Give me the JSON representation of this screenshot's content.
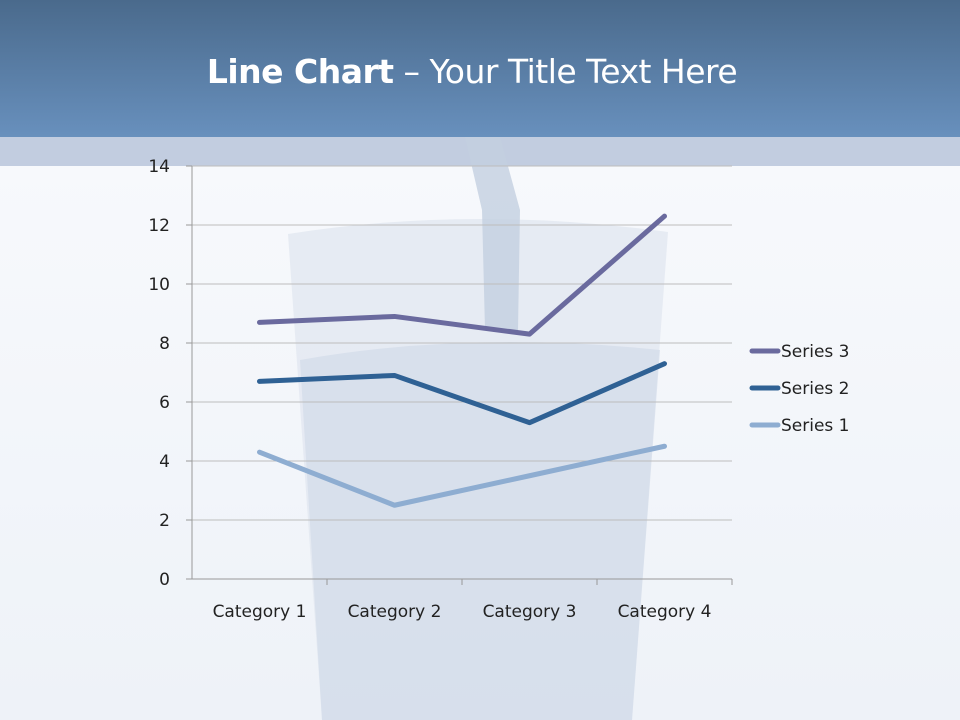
{
  "slide": {
    "title_bold": "Line Chart",
    "title_rest": " – Your Title Text Here"
  },
  "chart_data": {
    "type": "line",
    "stacked": true,
    "categories": [
      "Category 1",
      "Category 2",
      "Category 3",
      "Category 4"
    ],
    "series": [
      {
        "name": "Series 1",
        "values": [
          4.3,
          2.5,
          3.5,
          4.5
        ],
        "color": "#8eadd1"
      },
      {
        "name": "Series 2",
        "values": [
          2.4,
          4.4,
          1.8,
          2.8
        ],
        "color": "#2f6194"
      },
      {
        "name": "Series 3",
        "values": [
          2.0,
          2.0,
          3.0,
          5.0
        ],
        "color": "#6a6a9e"
      }
    ],
    "ylim": [
      0,
      14
    ],
    "yticks": [
      0,
      2,
      4,
      6,
      8,
      10,
      12,
      14
    ],
    "grid": true,
    "legend": "right",
    "legend_order": [
      "Series 3",
      "Series 2",
      "Series 1"
    ],
    "title": "",
    "xlabel": "",
    "ylabel": ""
  }
}
